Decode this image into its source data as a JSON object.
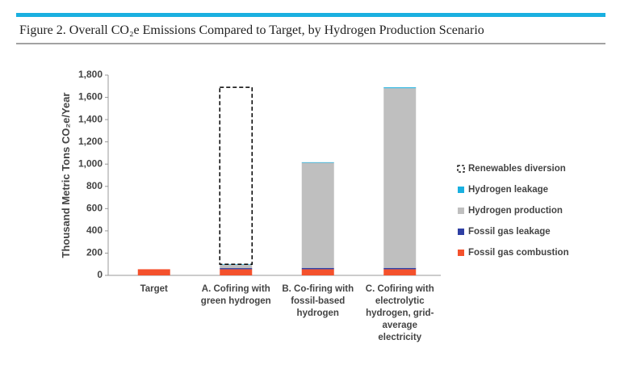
{
  "chart_data": {
    "type": "stacked-bar",
    "title": "Figure 2. Overall CO₂e Emissions Compared to Target, by Hydrogen Production Scenario",
    "y_label": "Thousand Metric Tons CO₂e/Year",
    "categories": [
      [
        "Target"
      ],
      [
        "A. Cofiring with",
        "green hydrogen"
      ],
      [
        "B. Co-firing with",
        "fossil-based",
        "hydrogen"
      ],
      [
        "C. Cofiring with",
        "electrolytic",
        "hydrogen, grid-",
        "average",
        "electricity"
      ]
    ],
    "series": [
      {
        "name": "Fossil gas combustion",
        "color": "#f4512c",
        "values": [
          55,
          55,
          55,
          55
        ]
      },
      {
        "name": "Fossil gas leakage",
        "color": "#2e3fa3",
        "values": [
          null,
          10,
          12,
          12
        ]
      },
      {
        "name": "Hydrogen production",
        "color": "#bfbfbf",
        "values": [
          null,
          30,
          945,
          1615
        ]
      },
      {
        "name": "Hydrogen leakage",
        "color": "#1ab0e0",
        "values": [
          null,
          5,
          5,
          8
        ]
      },
      {
        "name": "Renewables diversion",
        "color": "#000000",
        "dashed": true,
        "values": [
          null,
          1590,
          null,
          null
        ]
      }
    ],
    "ylim": [
      0,
      1800
    ],
    "yticks": [
      0,
      200,
      400,
      600,
      800,
      {
        "value": 1000,
        "label": "1,000"
      },
      {
        "value": 1200,
        "label": "1,200"
      },
      {
        "value": 1400,
        "label": "1,400"
      },
      {
        "value": 1600,
        "label": "1,600"
      },
      {
        "value": 1800,
        "label": "1,800"
      }
    ],
    "legend": "right"
  }
}
